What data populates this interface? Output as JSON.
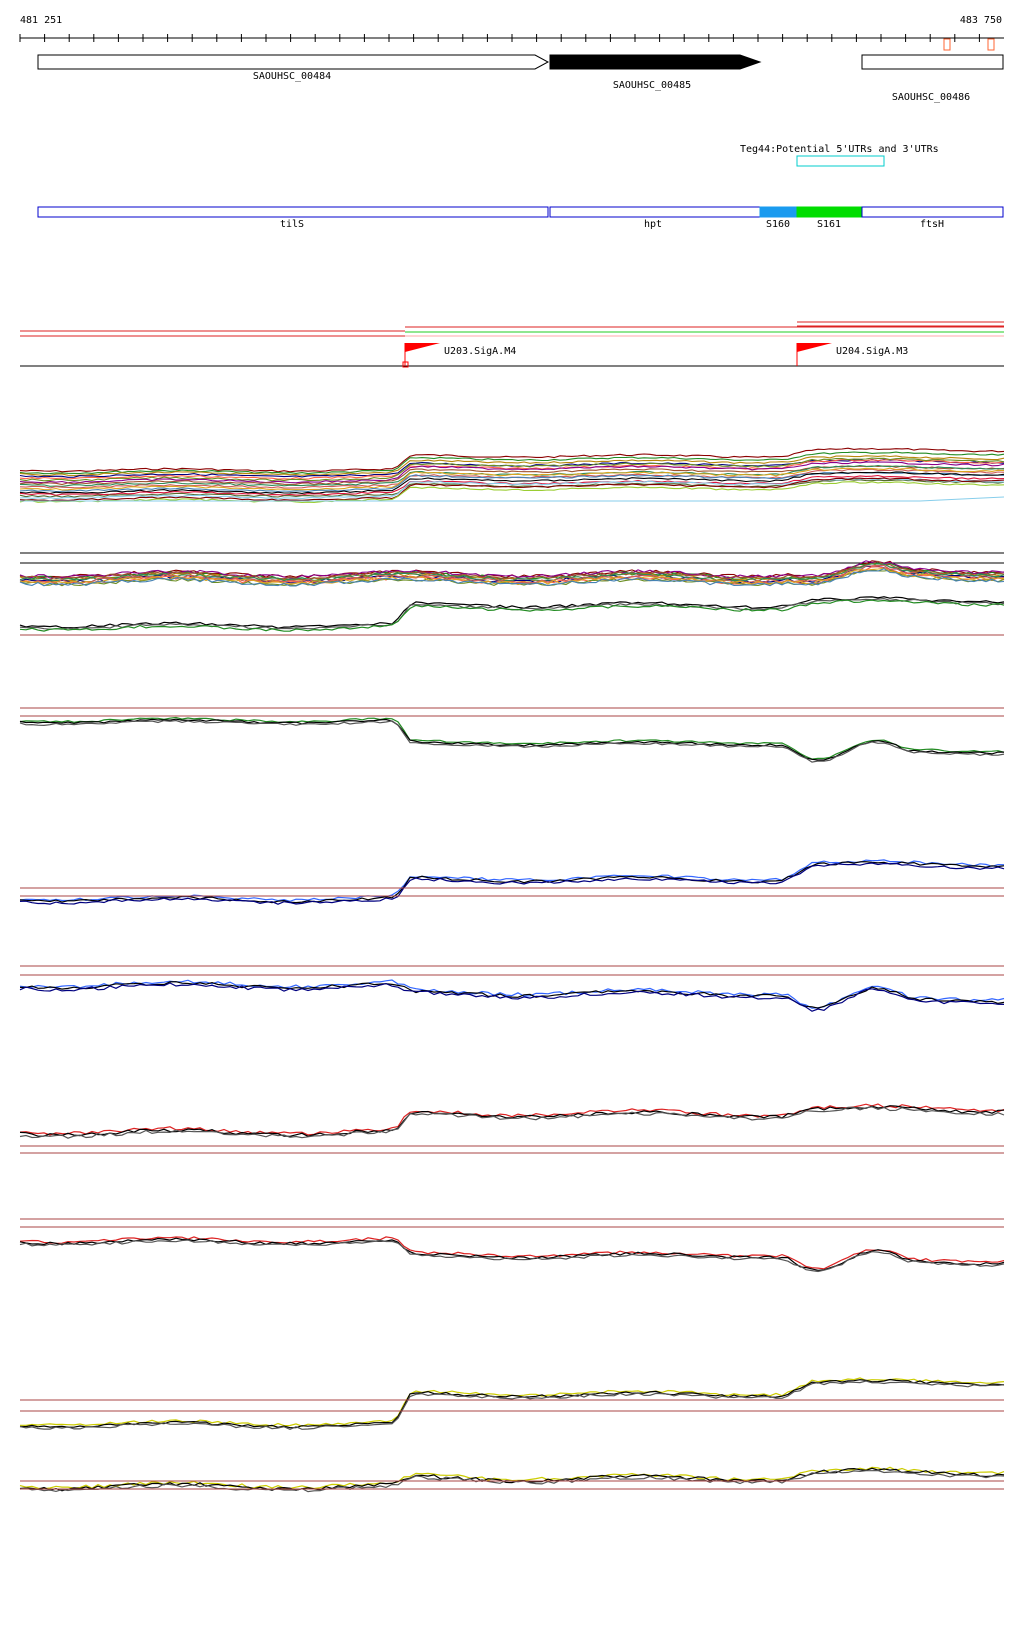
{
  "ruler": {
    "start_label": "481 251",
    "end_label": "483 750"
  },
  "genes": [
    {
      "id": "SAOUHSC_00484",
      "style": "open"
    },
    {
      "id": "SAOUHSC_00485",
      "style": "filled"
    },
    {
      "id": "SAOUHSC_00486",
      "style": "open"
    }
  ],
  "feature_track": {
    "label": "Teg44:Potential 5'UTRs and 3'UTRs"
  },
  "segments": [
    "tilS",
    "hpt",
    "S160",
    "S161",
    "ftsH"
  ],
  "promoters": [
    "U203.SigA.M4",
    "U204.SigA.M3"
  ],
  "colors": {
    "gene_outline": "#000000",
    "segment_outline": "#0000cc",
    "s160_fill": "#1a9bef",
    "s161_fill": "#00dd00",
    "feature_box": "#00cccc",
    "promoter_flag": "#ff0000",
    "guide_line": "#aa4444",
    "marker_orange": "#ff6633"
  },
  "icons": {
    "promoter_marker": "red-flag-icon"
  }
}
